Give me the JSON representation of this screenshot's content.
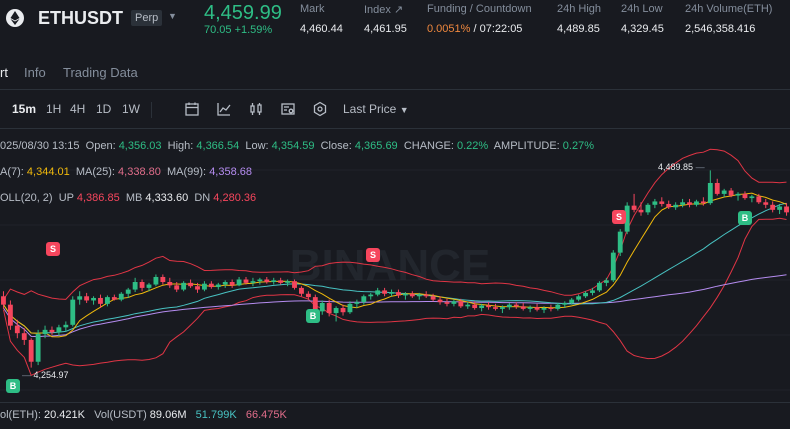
{
  "header": {
    "symbol": "ETHUSDT",
    "contract_type": "Perp",
    "last_price": "4,459.99",
    "change": "70.05 +1.59%",
    "stats": [
      {
        "label": "Mark",
        "value": "4,460.44"
      },
      {
        "label": "Index ↗",
        "value": "4,461.95"
      },
      {
        "label": "Funding / Countdown",
        "value_funding": "0.0051%",
        "value_countdown": " / 07:22:05"
      },
      {
        "label": "24h High",
        "value": "4,489.85"
      },
      {
        "label": "24h Low",
        "value": "4,329.45"
      },
      {
        "label": "24h Volume(ETH)",
        "value": "2,546,358.416"
      }
    ]
  },
  "tabs": [
    "rt",
    "Info",
    "Trading Data"
  ],
  "toolbar": {
    "timeframes": [
      "15m",
      "1H",
      "4H",
      "1D",
      "1W"
    ],
    "active_timeframe": "15m",
    "price_type": "Last Price"
  },
  "ohlc": {
    "datetime": "025/08/30 13:15",
    "open_label": "Open:",
    "open": "4,356.03",
    "high_label": "High:",
    "high": "4,366.54",
    "low_label": "Low:",
    "low": "4,354.59",
    "close_label": "Close:",
    "close": "4,365.69",
    "change_label": "CHANGE:",
    "change": "0.22%",
    "amplitude_label": "AMPLITUDE:",
    "amplitude": "0.27%"
  },
  "ma": {
    "ma7_label": "A(7):",
    "ma7": "4,344.01",
    "ma25_label": "MA(25):",
    "ma25": "4,338.80",
    "ma99_label": "MA(99):",
    "ma99": "4,358.68"
  },
  "boll": {
    "label": "OLL(20, 2)",
    "up_label": "UP",
    "up": "4,386.85",
    "mb_label": "MB",
    "mb": "4,333.60",
    "dn_label": "DN",
    "dn": "4,280.36"
  },
  "chart_annotations": {
    "high": "4,489.85",
    "low": "4,254.97",
    "watermark": "BINANCE"
  },
  "volume": {
    "label": "ol(ETH):",
    "vol_eth": "20.421K",
    "usdt_label": "Vol(USDT)",
    "vol_usdt": "89.06M",
    "ma5": "51.799K",
    "ma10": "66.475K"
  },
  "colors": {
    "up": "#2ebd85",
    "down": "#f6465d",
    "ma7": "#f0b90b",
    "ma25": "#48c2c2",
    "ma99": "#b58cf0",
    "boll": "#e03545"
  },
  "chart_data": {
    "type": "candlestick",
    "series": [
      {
        "o": 4340,
        "h": 4346,
        "l": 4325,
        "c": 4330
      },
      {
        "o": 4330,
        "h": 4335,
        "l": 4300,
        "c": 4305
      },
      {
        "o": 4305,
        "h": 4312,
        "l": 4290,
        "c": 4296
      },
      {
        "o": 4296,
        "h": 4302,
        "l": 4282,
        "c": 4288
      },
      {
        "o": 4288,
        "h": 4290,
        "l": 4255,
        "c": 4262
      },
      {
        "o": 4262,
        "h": 4300,
        "l": 4258,
        "c": 4295
      },
      {
        "o": 4295,
        "h": 4305,
        "l": 4290,
        "c": 4300
      },
      {
        "o": 4300,
        "h": 4304,
        "l": 4294,
        "c": 4297
      },
      {
        "o": 4297,
        "h": 4306,
        "l": 4293,
        "c": 4303
      },
      {
        "o": 4303,
        "h": 4310,
        "l": 4298,
        "c": 4306
      },
      {
        "o": 4306,
        "h": 4340,
        "l": 4304,
        "c": 4336
      },
      {
        "o": 4336,
        "h": 4346,
        "l": 4330,
        "c": 4340
      },
      {
        "o": 4340,
        "h": 4344,
        "l": 4332,
        "c": 4335
      },
      {
        "o": 4335,
        "h": 4340,
        "l": 4330,
        "c": 4338
      },
      {
        "o": 4338,
        "h": 4342,
        "l": 4326,
        "c": 4331
      },
      {
        "o": 4331,
        "h": 4341,
        "l": 4328,
        "c": 4339
      },
      {
        "o": 4339,
        "h": 4342,
        "l": 4335,
        "c": 4336
      },
      {
        "o": 4336,
        "h": 4345,
        "l": 4334,
        "c": 4343
      },
      {
        "o": 4343,
        "h": 4350,
        "l": 4338,
        "c": 4348
      },
      {
        "o": 4348,
        "h": 4362,
        "l": 4345,
        "c": 4357
      },
      {
        "o": 4357,
        "h": 4360,
        "l": 4346,
        "c": 4350
      },
      {
        "o": 4350,
        "h": 4356,
        "l": 4346,
        "c": 4354
      },
      {
        "o": 4354,
        "h": 4366,
        "l": 4352,
        "c": 4363
      },
      {
        "o": 4363,
        "h": 4366,
        "l": 4354,
        "c": 4357
      },
      {
        "o": 4357,
        "h": 4362,
        "l": 4350,
        "c": 4353
      },
      {
        "o": 4353,
        "h": 4357,
        "l": 4345,
        "c": 4348
      },
      {
        "o": 4348,
        "h": 4358,
        "l": 4346,
        "c": 4356
      },
      {
        "o": 4356,
        "h": 4360,
        "l": 4350,
        "c": 4352
      },
      {
        "o": 4352,
        "h": 4356,
        "l": 4344,
        "c": 4348
      },
      {
        "o": 4348,
        "h": 4358,
        "l": 4346,
        "c": 4355
      },
      {
        "o": 4355,
        "h": 4358,
        "l": 4349,
        "c": 4351
      },
      {
        "o": 4351,
        "h": 4356,
        "l": 4348,
        "c": 4354
      },
      {
        "o": 4354,
        "h": 4359,
        "l": 4350,
        "c": 4357
      },
      {
        "o": 4357,
        "h": 4360,
        "l": 4350,
        "c": 4353
      },
      {
        "o": 4353,
        "h": 4363,
        "l": 4352,
        "c": 4360
      },
      {
        "o": 4360,
        "h": 4363,
        "l": 4354,
        "c": 4356
      },
      {
        "o": 4356,
        "h": 4362,
        "l": 4352,
        "c": 4358
      },
      {
        "o": 4358,
        "h": 4362,
        "l": 4354,
        "c": 4360
      },
      {
        "o": 4360,
        "h": 4363,
        "l": 4355,
        "c": 4357
      },
      {
        "o": 4357,
        "h": 4362,
        "l": 4354,
        "c": 4359
      },
      {
        "o": 4359,
        "h": 4362,
        "l": 4354,
        "c": 4356
      },
      {
        "o": 4356,
        "h": 4360,
        "l": 4352,
        "c": 4358
      },
      {
        "o": 4358,
        "h": 4360,
        "l": 4348,
        "c": 4350
      },
      {
        "o": 4350,
        "h": 4352,
        "l": 4340,
        "c": 4343
      },
      {
        "o": 4343,
        "h": 4346,
        "l": 4336,
        "c": 4339
      },
      {
        "o": 4339,
        "h": 4342,
        "l": 4316,
        "c": 4322
      },
      {
        "o": 4322,
        "h": 4335,
        "l": 4318,
        "c": 4332
      },
      {
        "o": 4332,
        "h": 4336,
        "l": 4316,
        "c": 4320
      },
      {
        "o": 4320,
        "h": 4328,
        "l": 4310,
        "c": 4326
      },
      {
        "o": 4326,
        "h": 4330,
        "l": 4317,
        "c": 4321
      },
      {
        "o": 4321,
        "h": 4334,
        "l": 4319,
        "c": 4331
      },
      {
        "o": 4331,
        "h": 4336,
        "l": 4326,
        "c": 4333
      },
      {
        "o": 4333,
        "h": 4342,
        "l": 4330,
        "c": 4340
      },
      {
        "o": 4340,
        "h": 4344,
        "l": 4336,
        "c": 4342
      },
      {
        "o": 4342,
        "h": 4350,
        "l": 4340,
        "c": 4347
      },
      {
        "o": 4347,
        "h": 4350,
        "l": 4340,
        "c": 4343
      },
      {
        "o": 4343,
        "h": 4348,
        "l": 4340,
        "c": 4345
      },
      {
        "o": 4345,
        "h": 4348,
        "l": 4338,
        "c": 4341
      },
      {
        "o": 4341,
        "h": 4345,
        "l": 4336,
        "c": 4343
      },
      {
        "o": 4343,
        "h": 4346,
        "l": 4338,
        "c": 4340
      },
      {
        "o": 4340,
        "h": 4344,
        "l": 4336,
        "c": 4342
      },
      {
        "o": 4342,
        "h": 4346,
        "l": 4338,
        "c": 4340
      },
      {
        "o": 4340,
        "h": 4343,
        "l": 4334,
        "c": 4336
      },
      {
        "o": 4336,
        "h": 4340,
        "l": 4330,
        "c": 4333
      },
      {
        "o": 4333,
        "h": 4337,
        "l": 4328,
        "c": 4331
      },
      {
        "o": 4331,
        "h": 4336,
        "l": 4328,
        "c": 4334
      },
      {
        "o": 4334,
        "h": 4337,
        "l": 4326,
        "c": 4328
      },
      {
        "o": 4328,
        "h": 4333,
        "l": 4325,
        "c": 4330
      },
      {
        "o": 4330,
        "h": 4334,
        "l": 4324,
        "c": 4326
      },
      {
        "o": 4326,
        "h": 4331,
        "l": 4322,
        "c": 4329
      },
      {
        "o": 4329,
        "h": 4333,
        "l": 4324,
        "c": 4327
      },
      {
        "o": 4327,
        "h": 4331,
        "l": 4323,
        "c": 4325
      },
      {
        "o": 4325,
        "h": 4329,
        "l": 4320,
        "c": 4327
      },
      {
        "o": 4327,
        "h": 4332,
        "l": 4324,
        "c": 4330
      },
      {
        "o": 4330,
        "h": 4333,
        "l": 4325,
        "c": 4328
      },
      {
        "o": 4328,
        "h": 4332,
        "l": 4323,
        "c": 4325
      },
      {
        "o": 4325,
        "h": 4329,
        "l": 4321,
        "c": 4327
      },
      {
        "o": 4327,
        "h": 4331,
        "l": 4322,
        "c": 4324
      },
      {
        "o": 4324,
        "h": 4328,
        "l": 4320,
        "c": 4326
      },
      {
        "o": 4326,
        "h": 4330,
        "l": 4322,
        "c": 4325
      },
      {
        "o": 4325,
        "h": 4332,
        "l": 4323,
        "c": 4330
      },
      {
        "o": 4330,
        "h": 4334,
        "l": 4326,
        "c": 4332
      },
      {
        "o": 4332,
        "h": 4338,
        "l": 4330,
        "c": 4336
      },
      {
        "o": 4336,
        "h": 4342,
        "l": 4334,
        "c": 4340
      },
      {
        "o": 4340,
        "h": 4346,
        "l": 4338,
        "c": 4344
      },
      {
        "o": 4344,
        "h": 4350,
        "l": 4341,
        "c": 4347
      },
      {
        "o": 4347,
        "h": 4358,
        "l": 4345,
        "c": 4356
      },
      {
        "o": 4356,
        "h": 4362,
        "l": 4352,
        "c": 4359
      },
      {
        "o": 4359,
        "h": 4395,
        "l": 4357,
        "c": 4392
      },
      {
        "o": 4392,
        "h": 4420,
        "l": 4388,
        "c": 4417
      },
      {
        "o": 4417,
        "h": 4452,
        "l": 4414,
        "c": 4448
      },
      {
        "o": 4448,
        "h": 4462,
        "l": 4440,
        "c": 4443
      },
      {
        "o": 4443,
        "h": 4452,
        "l": 4436,
        "c": 4440
      },
      {
        "o": 4440,
        "h": 4451,
        "l": 4437,
        "c": 4449
      },
      {
        "o": 4449,
        "h": 4456,
        "l": 4445,
        "c": 4453
      },
      {
        "o": 4453,
        "h": 4458,
        "l": 4447,
        "c": 4450
      },
      {
        "o": 4450,
        "h": 4454,
        "l": 4444,
        "c": 4446
      },
      {
        "o": 4446,
        "h": 4452,
        "l": 4443,
        "c": 4449
      },
      {
        "o": 4449,
        "h": 4456,
        "l": 4446,
        "c": 4452
      },
      {
        "o": 4452,
        "h": 4456,
        "l": 4446,
        "c": 4449
      },
      {
        "o": 4449,
        "h": 4455,
        "l": 4447,
        "c": 4453
      },
      {
        "o": 4453,
        "h": 4458,
        "l": 4448,
        "c": 4451
      },
      {
        "o": 4451,
        "h": 4490,
        "l": 4449,
        "c": 4475
      },
      {
        "o": 4475,
        "h": 4480,
        "l": 4460,
        "c": 4462
      },
      {
        "o": 4462,
        "h": 4468,
        "l": 4458,
        "c": 4466
      },
      {
        "o": 4466,
        "h": 4469,
        "l": 4458,
        "c": 4460
      },
      {
        "o": 4460,
        "h": 4464,
        "l": 4454,
        "c": 4462
      },
      {
        "o": 4462,
        "h": 4465,
        "l": 4455,
        "c": 4457
      },
      {
        "o": 4457,
        "h": 4461,
        "l": 4452,
        "c": 4459
      },
      {
        "o": 4459,
        "h": 4462,
        "l": 4450,
        "c": 4452
      },
      {
        "o": 4452,
        "h": 4456,
        "l": 4445,
        "c": 4449
      },
      {
        "o": 4449,
        "h": 4453,
        "l": 4440,
        "c": 4443
      },
      {
        "o": 4443,
        "h": 4450,
        "l": 4438,
        "c": 4447
      },
      {
        "o": 4447,
        "h": 4451,
        "l": 4436,
        "c": 4440
      }
    ]
  }
}
